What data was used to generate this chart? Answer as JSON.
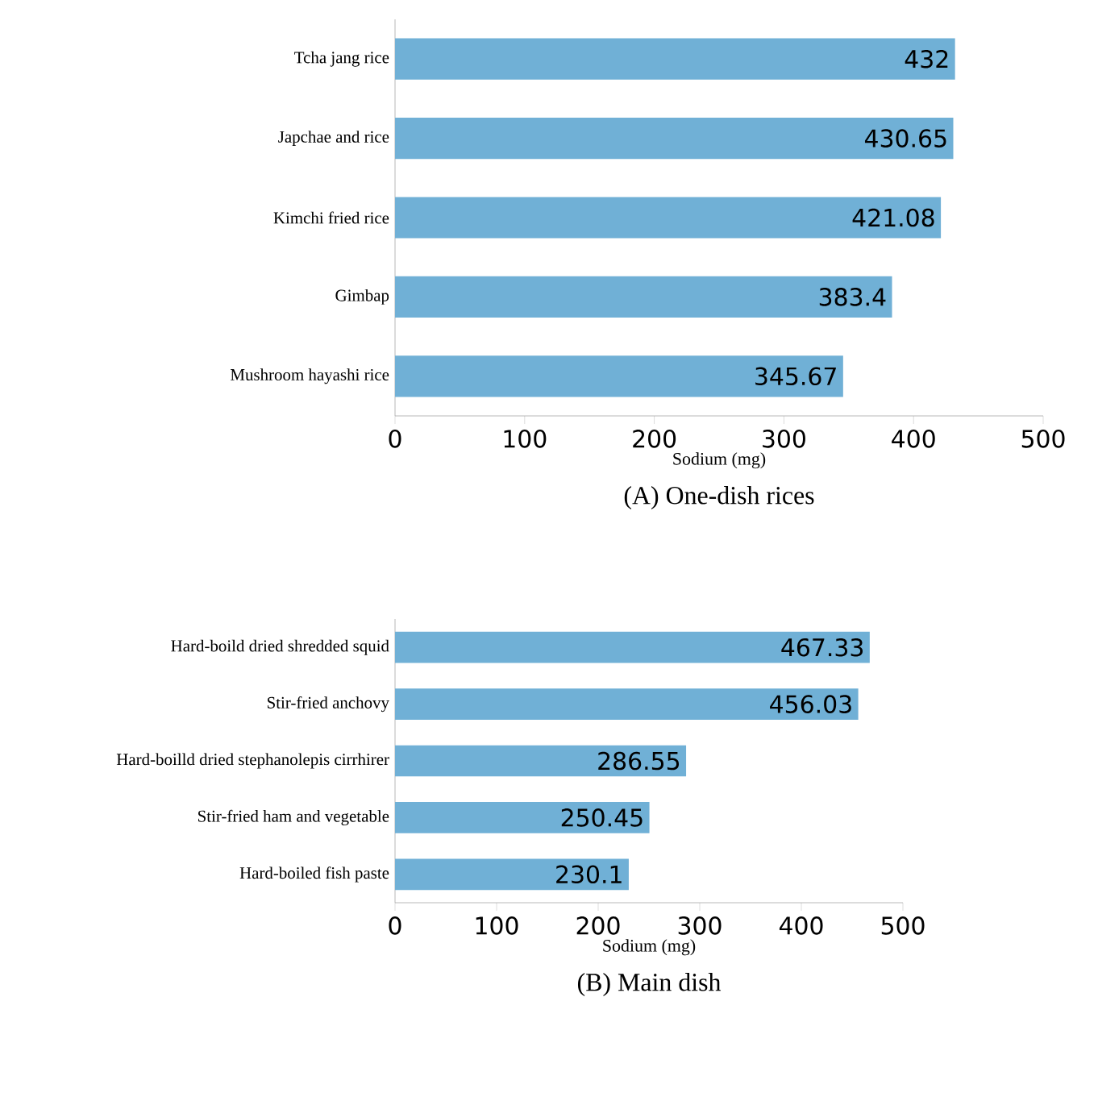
{
  "chart_data": [
    {
      "type": "bar",
      "orientation": "horizontal",
      "title": "(A)  One-dish rices",
      "xlabel": "Sodium (mg)",
      "categories": [
        "Tcha jang rice",
        "Japchae and rice",
        "Kimchi fried rice",
        "Gimbap",
        "Mushroom hayashi rice"
      ],
      "values": [
        432,
        430.65,
        421.08,
        383.4,
        345.67
      ],
      "color": "#70b0d6",
      "xlim": [
        0,
        500
      ],
      "xticks": [
        0,
        100,
        200,
        300,
        400,
        500
      ],
      "data_labels": true
    },
    {
      "type": "bar",
      "orientation": "horizontal",
      "title": "(B)  Main  dish",
      "xlabel": "Sodium (mg)",
      "categories": [
        "Hard-boild dried shredded squid",
        "Stir-fried anchovy",
        "Hard-boilld dried stephanolepis cirrhirer",
        "Stir-fried ham and vegetable",
        "Hard-boiled fish paste"
      ],
      "values": [
        467.33,
        456.03,
        286.55,
        250.45,
        230.1
      ],
      "color": "#70b0d6",
      "xlim": [
        0,
        500
      ],
      "xticks": [
        0,
        100,
        200,
        300,
        400,
        500
      ],
      "data_labels": true
    }
  ]
}
